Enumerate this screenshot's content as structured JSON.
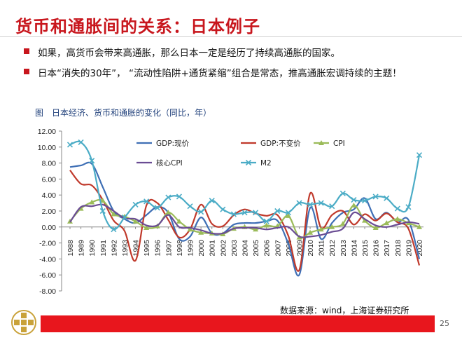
{
  "slide": {
    "title": "货币和通胀间的关系：日本例子",
    "bullets": [
      "如果，高货币会带来高通胀，那么日本一定是经历了持续高通胀的国家。",
      "日本“消失的30年”， “流动性陷阱+通货紧缩”组合是常态，推高通胀宏调持续的主题！"
    ],
    "figure_caption": "图　日本经济、货币和通胀的变化（同比，年）",
    "source": "数据来源：wind，上海证券研究所",
    "page_number": "25",
    "accent_color": "#c8161d",
    "footer_color": "#e8161d"
  },
  "chart_data": {
    "type": "line",
    "ylim": [
      -8,
      12
    ],
    "yticks": [
      "12.00",
      "10.00",
      "8.00",
      "6.00",
      "4.00",
      "2.00",
      "0.00",
      "-2.00",
      "-4.00",
      "-6.00",
      "-8.00"
    ],
    "categories": [
      "1988",
      "1989",
      "1990",
      "1991",
      "1992",
      "1993",
      "1994",
      "1995",
      "1996",
      "1997",
      "1998",
      "1999",
      "2000",
      "2001",
      "2002",
      "2003",
      "2004",
      "2005",
      "2006",
      "2007",
      "2008",
      "2009",
      "2010",
      "2011",
      "2012",
      "2013",
      "2014",
      "2015",
      "2016",
      "2017",
      "2018",
      "2019",
      "2020"
    ],
    "series": [
      {
        "name": "GDP:现价",
        "color": "#3f6fb5",
        "marker": "none",
        "values": [
          7.5,
          7.7,
          7.9,
          5.0,
          2.0,
          1.0,
          0.5,
          1.5,
          2.5,
          1.8,
          -1.5,
          -1.2,
          1.2,
          -0.8,
          -0.8,
          0.3,
          0.5,
          0.5,
          0.7,
          0.8,
          -2.1,
          -6.0,
          2.4,
          -1.5,
          0.5,
          1.8,
          2.2,
          3.6,
          1.0,
          1.8,
          0.6,
          0.9,
          -4.0
        ]
      },
      {
        "name": "GDP:不变价",
        "color": "#c0392b",
        "marker": "none",
        "values": [
          7.1,
          5.4,
          5.2,
          3.4,
          0.8,
          -0.5,
          -4.2,
          2.7,
          3.0,
          0.9,
          -1.3,
          -0.3,
          2.8,
          0.4,
          0.1,
          1.5,
          2.2,
          1.7,
          1.4,
          1.5,
          -1.1,
          -5.4,
          4.2,
          -0.1,
          1.5,
          2.0,
          0.3,
          1.6,
          0.8,
          1.7,
          0.6,
          -0.2,
          -4.8
        ]
      },
      {
        "name": "CPI",
        "color": "#9bbb59",
        "marker": "triangle",
        "values": [
          0.7,
          2.3,
          3.1,
          3.3,
          1.6,
          1.3,
          0.7,
          -0.1,
          0.1,
          1.8,
          0.7,
          -0.3,
          -0.7,
          -0.8,
          -0.9,
          -0.2,
          0.0,
          -0.3,
          0.2,
          0.1,
          1.4,
          -1.3,
          -0.7,
          -0.3,
          0.0,
          0.4,
          2.7,
          0.8,
          -0.1,
          0.5,
          1.0,
          0.5,
          0.0
        ]
      },
      {
        "name": "核心CPI",
        "color": "#6a4c93",
        "marker": "none",
        "values": [
          0.6,
          2.5,
          2.6,
          2.8,
          2.0,
          1.1,
          1.0,
          0.2,
          0.2,
          1.5,
          0.0,
          -0.1,
          -0.4,
          -0.8,
          -0.8,
          -0.2,
          -0.1,
          -0.1,
          -0.3,
          -0.1,
          0.0,
          -1.2,
          -1.2,
          -1.0,
          -0.6,
          -0.2,
          1.8,
          1.0,
          0.2,
          0.0,
          0.3,
          0.6,
          0.4
        ]
      },
      {
        "name": "M2",
        "color": "#4bacc6",
        "marker": "x",
        "values": [
          10.3,
          10.6,
          8.3,
          2.0,
          -0.3,
          1.2,
          2.8,
          3.2,
          2.4,
          3.7,
          3.8,
          2.6,
          1.9,
          3.3,
          2.2,
          1.6,
          1.8,
          1.8,
          0.7,
          2.0,
          1.8,
          3.0,
          2.8,
          3.0,
          2.6,
          4.2,
          3.4,
          3.3,
          3.8,
          3.6,
          2.3,
          2.5,
          9.0
        ]
      }
    ]
  }
}
